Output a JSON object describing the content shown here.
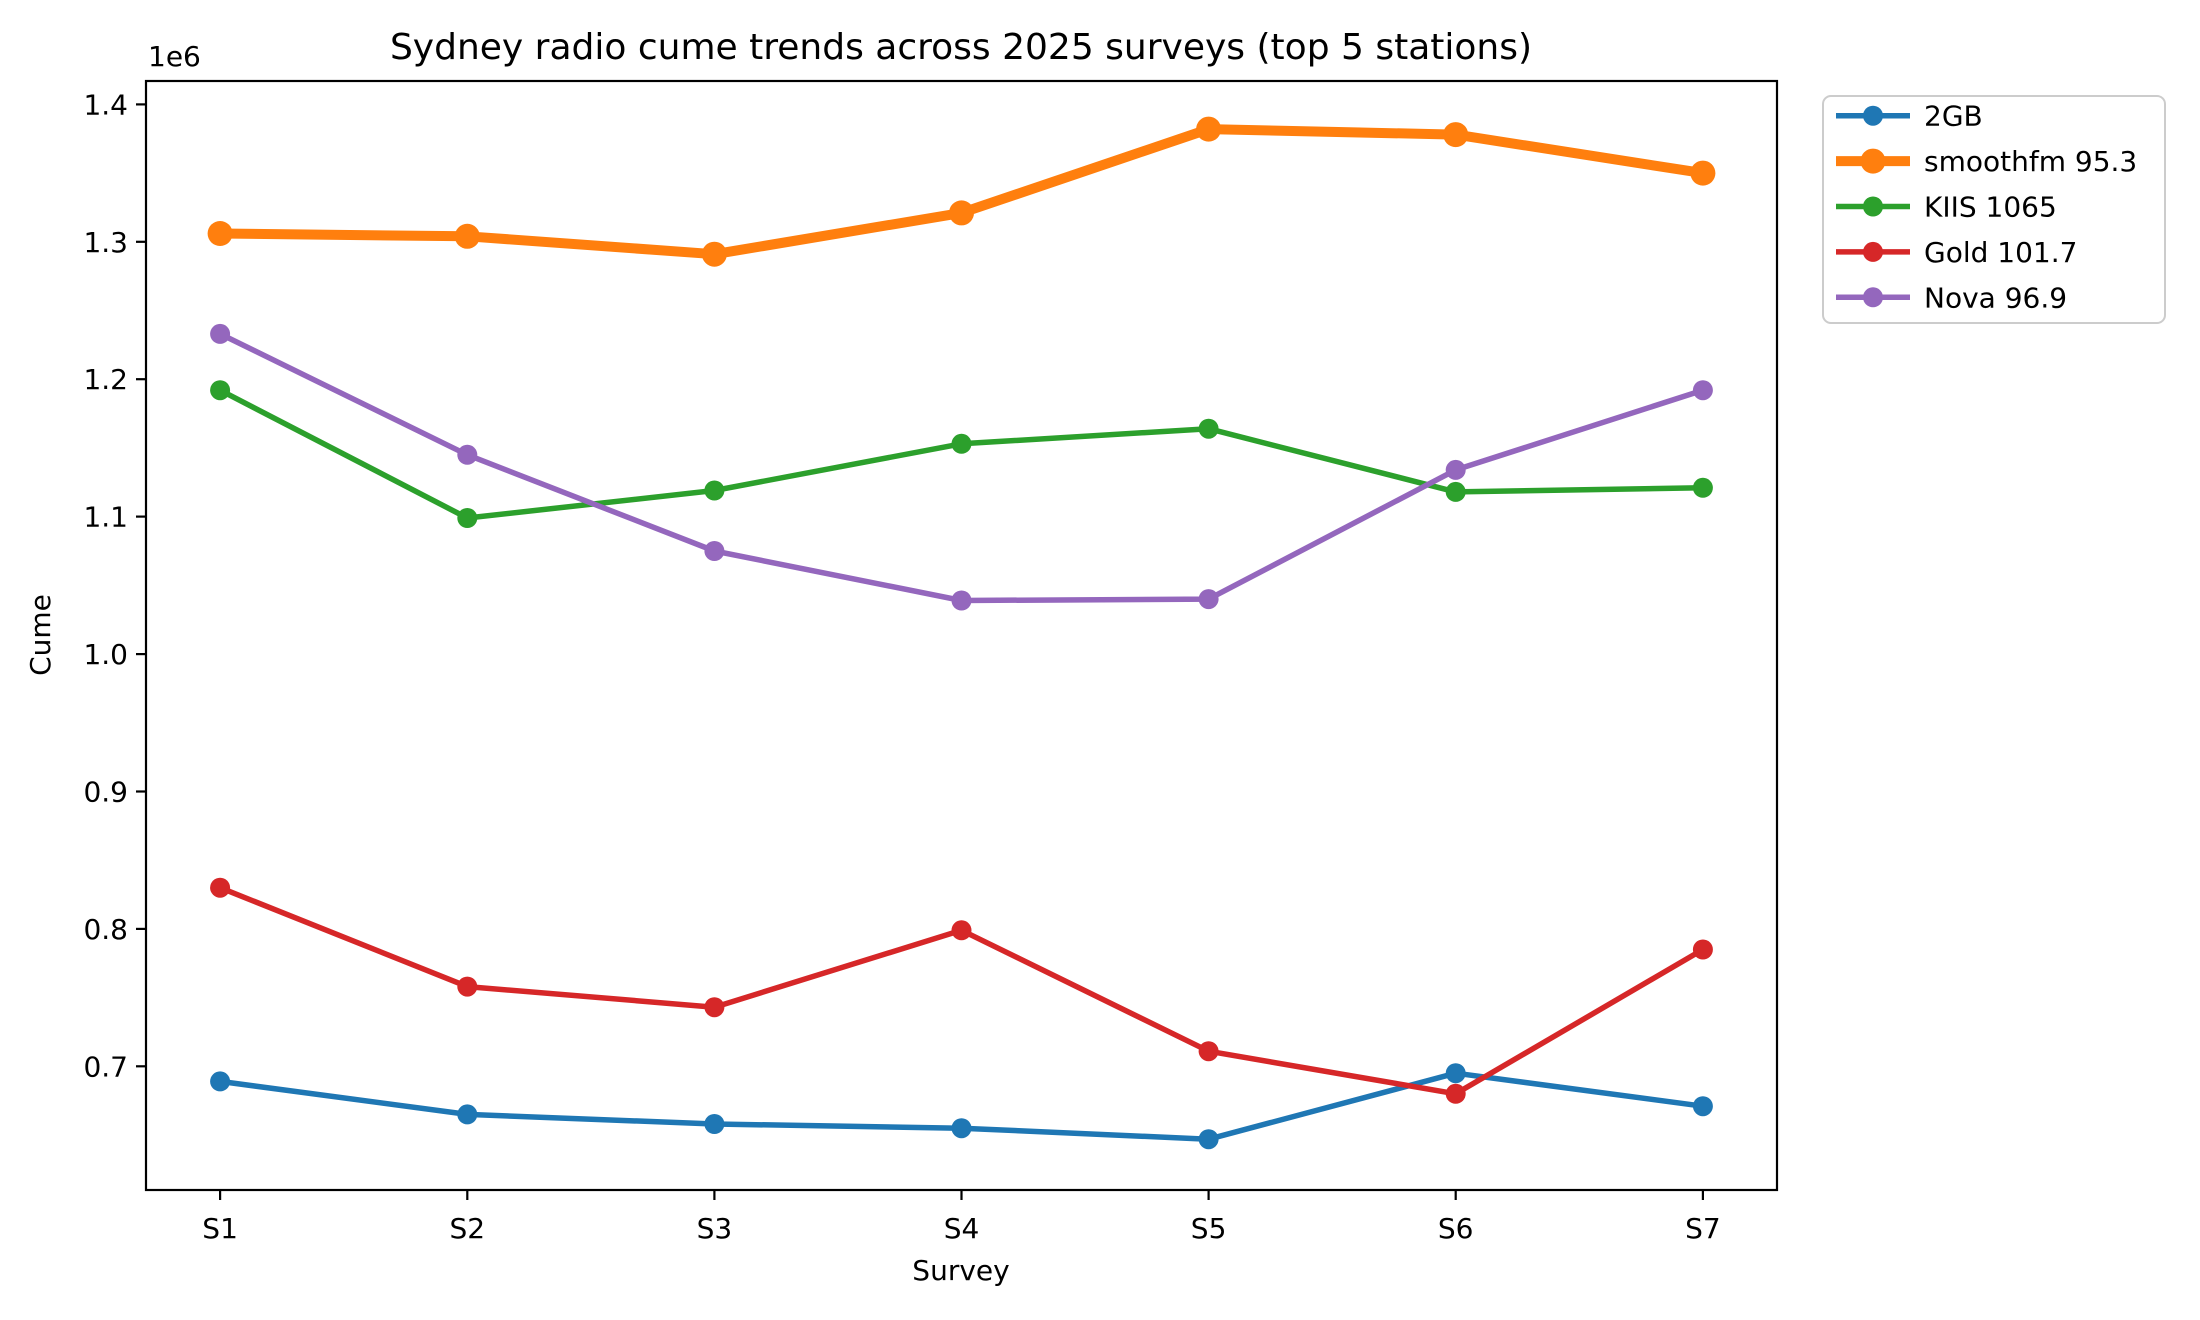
{
  "figure": {
    "background": "#ffffff",
    "text_color": "#000000",
    "legend_border_color": "#cccccc"
  },
  "chart_data": {
    "type": "line",
    "title": "Sydney radio cume trends across 2025 surveys (top 5 stations)",
    "xlabel": "Survey",
    "ylabel": "Cume",
    "offset_text": "1e6",
    "categories": [
      "S1",
      "S2",
      "S3",
      "S4",
      "S5",
      "S6",
      "S7"
    ],
    "series": [
      {
        "name": "2GB",
        "color": "#1f77b4",
        "linewidth": 5.5,
        "marker_radius": 10,
        "values": [
          689000,
          665000,
          658000,
          655000,
          647000,
          695000,
          671000
        ]
      },
      {
        "name": "smoothfm 95.3",
        "color": "#ff7f0e",
        "linewidth": 10,
        "marker_radius": 12.5,
        "values": [
          1306000,
          1304000,
          1291000,
          1321000,
          1382000,
          1378000,
          1350000
        ]
      },
      {
        "name": "KIIS 1065",
        "color": "#2ca02c",
        "linewidth": 5.5,
        "marker_radius": 10,
        "values": [
          1192000,
          1099000,
          1119000,
          1153000,
          1164000,
          1118000,
          1121000
        ]
      },
      {
        "name": "Gold 101.7",
        "color": "#d62728",
        "linewidth": 5.5,
        "marker_radius": 10,
        "values": [
          830000,
          758000,
          743000,
          799000,
          711000,
          680000,
          785000
        ]
      },
      {
        "name": "Nova 96.9",
        "color": "#9467bd",
        "linewidth": 5.5,
        "marker_radius": 10,
        "values": [
          1233000,
          1145000,
          1075000,
          1039000,
          1040000,
          1134000,
          1192000
        ]
      }
    ],
    "xlim": [
      -0.3,
      6.3
    ],
    "ylim": [
      610000,
      1417000
    ],
    "yticks": [
      700000,
      800000,
      900000,
      1000000,
      1100000,
      1200000,
      1300000,
      1400000
    ],
    "ytick_labels": [
      "0.7",
      "0.8",
      "0.9",
      "1.0",
      "1.1",
      "1.2",
      "1.3",
      "1.4"
    ],
    "grid": false,
    "legend_position": "outside-upper-right",
    "legend_entries": [
      "2GB",
      "smoothfm 95.3",
      "KIIS 1065",
      "Gold 101.7",
      "Nova 96.9"
    ]
  }
}
